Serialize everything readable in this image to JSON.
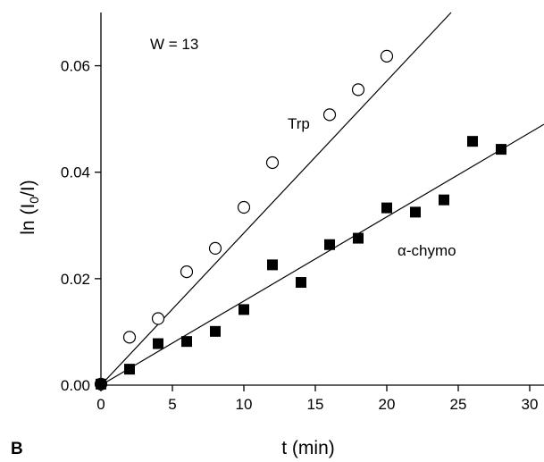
{
  "panel_label": "B",
  "chart_data": {
    "type": "scatter",
    "title": "",
    "xlabel": "t (min)",
    "ylabel_parts": {
      "prefix": "ln (I",
      "sub": "0",
      "suffix": "/I)"
    },
    "xlim": [
      0,
      31
    ],
    "ylim": [
      0,
      0.07
    ],
    "xticks": [
      0,
      5,
      10,
      15,
      20,
      25,
      30
    ],
    "xtick_labels": [
      "0",
      "5",
      "10",
      "15",
      "20",
      "25",
      "30"
    ],
    "yticks": [
      0.0,
      0.02,
      0.04,
      0.06
    ],
    "ytick_labels": [
      "0.00",
      "0.02",
      "0.04",
      "0.06"
    ],
    "annotation": "W = 13",
    "series": [
      {
        "name": "Trp",
        "marker": "open-circle",
        "x": [
          0,
          2,
          4,
          6,
          8,
          10,
          12,
          16,
          18,
          20
        ],
        "y": [
          0.0002,
          0.009,
          0.0125,
          0.0213,
          0.0257,
          0.0334,
          0.0418,
          0.0508,
          0.0555,
          0.0618
        ],
        "fit": {
          "x0": 0,
          "y0": 0.0,
          "x1": 24.5,
          "y1": 0.07
        }
      },
      {
        "name": "α-chymo",
        "marker": "filled-square",
        "x": [
          0,
          2,
          4,
          6,
          8,
          10,
          12,
          14,
          16,
          18,
          20,
          22,
          24,
          26,
          28
        ],
        "y": [
          0.0002,
          0.003,
          0.0078,
          0.0082,
          0.0101,
          0.0142,
          0.0226,
          0.0193,
          0.0264,
          0.0276,
          0.0333,
          0.0325,
          0.0348,
          0.0458,
          0.0443
        ],
        "fit": {
          "x0": 0,
          "y0": 0.0,
          "x1": 31,
          "y1": 0.049
        }
      }
    ],
    "colors": {
      "ink": "#000000",
      "background": "#ffffff"
    }
  }
}
